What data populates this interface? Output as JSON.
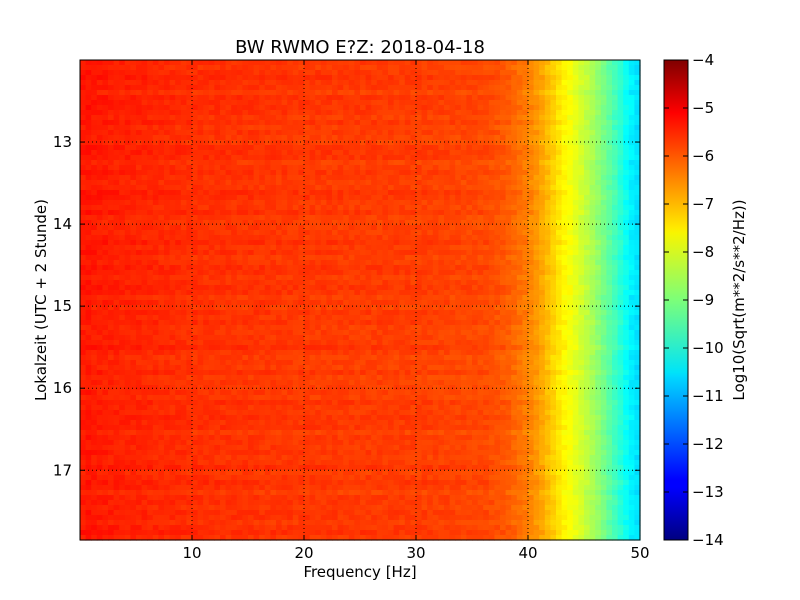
{
  "chart_data": {
    "type": "heatmap",
    "title": "BW RWMO E?Z: 2018-04-18",
    "xlabel": "Frequency [Hz]",
    "ylabel": "Lokalzeit (UTC + 2 Stunde)",
    "xlim": [
      0,
      50
    ],
    "ylim": [
      12.0,
      17.85
    ],
    "y_inverted": true,
    "xticks": [
      10,
      20,
      30,
      40,
      50
    ],
    "xtick_labels": [
      "10",
      "20",
      "30",
      "40",
      "50"
    ],
    "yticks": [
      13,
      14,
      15,
      16,
      17
    ],
    "ytick_labels": [
      "13",
      "14",
      "15",
      "16",
      "17"
    ],
    "grid": true,
    "grid_style": "dotted",
    "colormap": "jet",
    "colorbar": {
      "label": "Log10(Sqrt(m**2/s**2/Hz))",
      "range": [
        -14,
        -4
      ],
      "ticks": [
        -4,
        -5,
        -6,
        -7,
        -8,
        -9,
        -10,
        -11,
        -12,
        -13,
        -14
      ],
      "tick_labels": [
        "−4",
        "−5",
        "−6",
        "−7",
        "−8",
        "−9",
        "−10",
        "−11",
        "−12",
        "−13",
        "−14"
      ]
    },
    "frequency_profile": {
      "frequency_hz": [
        0,
        0.5,
        1,
        5,
        10,
        20,
        30,
        36,
        38,
        39,
        40,
        41,
        42,
        43,
        44,
        45,
        46,
        47,
        48,
        49,
        50
      ],
      "log10_amplitude": [
        -5.6,
        -5.4,
        -5.5,
        -5.6,
        -5.7,
        -5.8,
        -5.85,
        -5.95,
        -6.1,
        -6.3,
        -6.5,
        -6.8,
        -7.2,
        -7.6,
        -7.9,
        -8.3,
        -8.7,
        -9.2,
        -9.7,
        -10.3,
        -10.6
      ]
    }
  }
}
